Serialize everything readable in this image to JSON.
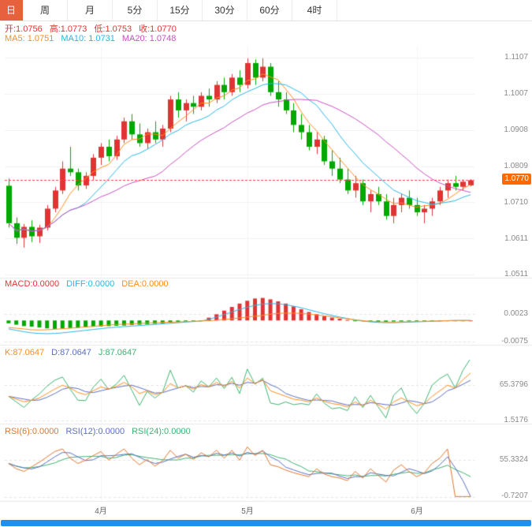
{
  "tabs": [
    {
      "label": "日",
      "active": true
    },
    {
      "label": "周"
    },
    {
      "label": "月"
    },
    {
      "label": "5分"
    },
    {
      "label": "15分"
    },
    {
      "label": "30分"
    },
    {
      "label": "60分"
    },
    {
      "label": "4时"
    }
  ],
  "main": {
    "ohlc": {
      "open": "开:1.0756",
      "high": "高:1.0773",
      "low": "低:1.0753",
      "close": "收:1.0770"
    },
    "ma": {
      "ma5": "MA5: 1.0751",
      "ma10": "MA10: 1.0731",
      "ma20": "MA20: 1.0748"
    },
    "price_ticks": [
      "1.1107",
      "1.1007",
      "1.0908",
      "1.0809",
      "1.0710",
      "1.0611",
      "1.0511"
    ],
    "price_badge": "1.0770"
  },
  "macd": {
    "labels": {
      "macd": "MACD:0.0000",
      "diff": "DIFF:0.0000",
      "dea": "DEA:0.0000"
    },
    "ticks_str": [
      "0.0023",
      "-0.0075"
    ]
  },
  "kdj": {
    "labels": {
      "k": "K:87.0647",
      "d": "D:87.0647",
      "j": "J:87.0647"
    },
    "ticks_str": [
      "65.3796",
      "1.5176"
    ]
  },
  "rsi": {
    "labels": {
      "rsi6": "RSI(6):0.0000",
      "rsi12": "RSI(12):0.0000",
      "rsi24": "RSI(24):0.0000"
    },
    "ticks_str": [
      "55.3324",
      "-0.7207"
    ]
  },
  "xaxis": {
    "labels": [
      "4月",
      "5月",
      "6月"
    ]
  },
  "colors": {
    "up": "#e03434",
    "down": "#00a800",
    "ma5": "#ff8d1e",
    "ma10": "#29b6e8",
    "ma20": "#c94fc3",
    "diff": "#29b6e8",
    "dea": "#ff8d1e",
    "k": "#ff8d1e",
    "d": "#5b6fc0",
    "j": "#3cb371",
    "rsi6": "#e0762e",
    "rsi12": "#5b6fc0",
    "rsi24": "#3cb371",
    "accent_tab": "#e8613e",
    "price_badge_bg": "#ff6a00",
    "bottom_bar": "#2090ea",
    "price_line": "#ff4040",
    "grid": "#f1f1f1",
    "grid_dash": "#e3e3e3",
    "separator": "#e8e8e8"
  },
  "chart_data": {
    "type": "candlestick",
    "title": "",
    "x_tick_labels": [
      "4月",
      "5月",
      "6月"
    ],
    "x_tick_indices": [
      12,
      31,
      53
    ],
    "price_axis": {
      "ticks": [
        1.1107,
        1.1007,
        1.0908,
        1.0809,
        1.071,
        1.0611,
        1.0511
      ],
      "current_price": 1.077
    },
    "current": {
      "open": 1.0756,
      "high": 1.0773,
      "low": 1.0753,
      "close": 1.077,
      "ma5": 1.0751,
      "ma10": 1.0731,
      "ma20": 1.0748,
      "macd": 0.0,
      "diff": 0.0,
      "dea": 0.0,
      "k": 87.0647,
      "d": 87.0647,
      "j": 87.0647,
      "rsi6": 0.0,
      "rsi12": 0.0,
      "rsi24": 0.0
    },
    "ma_periods": [
      5,
      10,
      20
    ],
    "candles": [
      [
        1.0755,
        1.0775,
        1.064,
        1.0652
      ],
      [
        1.0652,
        1.0668,
        1.0595,
        1.0612
      ],
      [
        1.0612,
        1.065,
        1.0585,
        1.0642
      ],
      [
        1.0642,
        1.066,
        1.06,
        1.0616
      ],
      [
        1.0616,
        1.0648,
        1.0598,
        1.064
      ],
      [
        1.064,
        1.0702,
        1.0632,
        1.0692
      ],
      [
        1.0692,
        1.0752,
        1.0682,
        1.0742
      ],
      [
        1.0742,
        1.0822,
        1.0732,
        1.0802
      ],
      [
        1.0802,
        1.0862,
        1.0782,
        1.0792
      ],
      [
        1.0792,
        1.0802,
        1.0742,
        1.0756
      ],
      [
        1.0756,
        1.0792,
        1.0746,
        1.0782
      ],
      [
        1.0782,
        1.0842,
        1.0772,
        1.0832
      ],
      [
        1.0832,
        1.0872,
        1.0812,
        1.0862
      ],
      [
        1.0862,
        1.0882,
        1.0822,
        1.0836
      ],
      [
        1.0836,
        1.0892,
        1.0826,
        1.0882
      ],
      [
        1.0882,
        1.0942,
        1.0872,
        1.0932
      ],
      [
        1.0932,
        1.0952,
        1.0882,
        1.0896
      ],
      [
        1.0896,
        1.0926,
        1.0862,
        1.0872
      ],
      [
        1.0872,
        1.0912,
        1.0856,
        1.0902
      ],
      [
        1.0902,
        1.0932,
        1.0872,
        1.0882
      ],
      [
        1.0882,
        1.0922,
        1.0862,
        1.0912
      ],
      [
        1.0912,
        1.1002,
        1.0902,
        1.0992
      ],
      [
        1.0992,
        1.1012,
        1.0942,
        1.0962
      ],
      [
        1.0962,
        1.0992,
        1.0932,
        1.0982
      ],
      [
        1.0982,
        1.1002,
        1.0952,
        1.0972
      ],
      [
        1.0972,
        1.1012,
        1.0962,
        1.1002
      ],
      [
        1.1002,
        1.1022,
        1.0972,
        1.0992
      ],
      [
        1.0992,
        1.1042,
        1.0982,
        1.1032
      ],
      [
        1.1032,
        1.1052,
        1.0992,
        1.1012
      ],
      [
        1.1012,
        1.1062,
        1.1002,
        1.1052
      ],
      [
        1.1052,
        1.1072,
        1.1012,
        1.1032
      ],
      [
        1.1032,
        1.1105,
        1.1022,
        1.1092
      ],
      [
        1.1092,
        1.1102,
        1.1032,
        1.1052
      ],
      [
        1.1052,
        1.1105,
        1.1042,
        1.1082
      ],
      [
        1.1082,
        1.1092,
        1.1002,
        1.1012
      ],
      [
        1.1012,
        1.1042,
        1.0972,
        1.0992
      ],
      [
        1.0992,
        1.1012,
        1.0952,
        1.0962
      ],
      [
        1.0962,
        1.0982,
        1.0902,
        1.0922
      ],
      [
        1.0922,
        1.0952,
        1.0882,
        1.0902
      ],
      [
        1.0902,
        1.0922,
        1.0852,
        1.0862
      ],
      [
        1.0862,
        1.0902,
        1.0842,
        1.0882
      ],
      [
        1.0882,
        1.0892,
        1.0812,
        1.0822
      ],
      [
        1.0822,
        1.0852,
        1.0782,
        1.0802
      ],
      [
        1.0802,
        1.0832,
        1.0762,
        1.0772
      ],
      [
        1.0772,
        1.0802,
        1.0732,
        1.0742
      ],
      [
        1.0742,
        1.0782,
        1.0722,
        1.0762
      ],
      [
        1.0762,
        1.0772,
        1.0702,
        1.0712
      ],
      [
        1.0712,
        1.0742,
        1.0682,
        1.0732
      ],
      [
        1.0732,
        1.0752,
        1.0702,
        1.0712
      ],
      [
        1.0712,
        1.0732,
        1.0662,
        1.0672
      ],
      [
        1.0672,
        1.0722,
        1.0652,
        1.0702
      ],
      [
        1.0702,
        1.0732,
        1.0682,
        1.0722
      ],
      [
        1.0722,
        1.0742,
        1.0692,
        1.0702
      ],
      [
        1.0702,
        1.0722,
        1.0672,
        1.0682
      ],
      [
        1.0682,
        1.0702,
        1.0652,
        1.0692
      ],
      [
        1.0692,
        1.0722,
        1.0672,
        1.0712
      ],
      [
        1.0712,
        1.0752,
        1.0702,
        1.0742
      ],
      [
        1.0742,
        1.0772,
        1.0722,
        1.0762
      ],
      [
        1.0762,
        1.0782,
        1.0742,
        1.0752
      ],
      [
        1.0752,
        1.0772,
        1.0742,
        1.0766
      ],
      [
        1.0756,
        1.0773,
        1.0753,
        1.077
      ]
    ],
    "macd": {
      "ticks": [
        0.0023,
        -0.0075
      ],
      "histogram": [
        -0.001,
        -0.0015,
        -0.002,
        -0.0022,
        -0.0025,
        -0.0028,
        -0.003,
        -0.0029,
        -0.0027,
        -0.0026,
        -0.0024,
        -0.0022,
        -0.0021,
        -0.002,
        -0.0019,
        -0.0018,
        -0.0016,
        -0.0015,
        -0.0014,
        -0.0012,
        -0.001,
        -0.0008,
        -0.0006,
        -0.0004,
        -0.0002,
        -0.0001,
        0.001,
        0.0022,
        0.0035,
        0.0048,
        0.006,
        0.007,
        0.0078,
        0.008,
        0.0075,
        0.0068,
        0.006,
        0.005,
        0.004,
        0.003,
        0.0022,
        0.0015,
        0.001,
        0.0006,
        0.0002,
        -0.0001,
        -0.0003,
        -0.0004,
        -0.0005,
        -0.0005,
        -0.0004,
        -0.0004,
        -0.0003,
        -0.0003,
        -0.0002,
        -0.0002,
        -0.0001,
        -0.0001,
        0.0,
        0.0,
        0.0
      ],
      "diff": [
        -0.003,
        -0.0035,
        -0.004,
        -0.0044,
        -0.0046,
        -0.0047,
        -0.0046,
        -0.0044,
        -0.0041,
        -0.0038,
        -0.0035,
        -0.0032,
        -0.0029,
        -0.0026,
        -0.0024,
        -0.0022,
        -0.002,
        -0.0018,
        -0.0016,
        -0.0014,
        -0.0012,
        -0.001,
        -0.0008,
        -0.0006,
        -0.0004,
        -0.0002,
        0.0004,
        0.0012,
        0.0021,
        0.003,
        0.0039,
        0.0047,
        0.0054,
        0.0058,
        0.006,
        0.0059,
        0.0056,
        0.0051,
        0.0045,
        0.0038,
        0.0031,
        0.0024,
        0.0018,
        0.0012,
        0.0007,
        0.0002,
        -0.0002,
        -0.0005,
        -0.0007,
        -0.0008,
        -0.0008,
        -0.0007,
        -0.0006,
        -0.0005,
        -0.0004,
        -0.0003,
        -0.0002,
        -0.0001,
        0.0,
        0.0,
        0.0
      ]
    },
    "kdj": {
      "ticks": [
        65.3796,
        1.5176
      ],
      "k": [
        45,
        40,
        35,
        38,
        42,
        50,
        58,
        65,
        60,
        52,
        48,
        55,
        62,
        58,
        63,
        70,
        62,
        50,
        55,
        48,
        52,
        68,
        60,
        64,
        58,
        66,
        62,
        70,
        63,
        72,
        60,
        78,
        68,
        75,
        55,
        50,
        45,
        40,
        38,
        35,
        42,
        36,
        32,
        30,
        26,
        35,
        28,
        38,
        30,
        22,
        35,
        42,
        35,
        28,
        32,
        45,
        55,
        65,
        60,
        75,
        87
      ]
    },
    "rsi": {
      "ticks": [
        55.3324,
        -0.7207
      ],
      "rsi6": [
        50,
        42,
        38,
        45,
        52,
        60,
        68,
        72,
        58,
        50,
        55,
        62,
        68,
        55,
        64,
        72,
        58,
        48,
        56,
        46,
        54,
        70,
        58,
        64,
        56,
        66,
        60,
        70,
        58,
        70,
        55,
        75,
        62,
        70,
        48,
        45,
        40,
        36,
        33,
        30,
        42,
        34,
        30,
        28,
        24,
        38,
        28,
        42,
        32,
        22,
        40,
        48,
        38,
        30,
        36,
        50,
        58,
        72,
        0,
        0,
        0
      ]
    }
  }
}
